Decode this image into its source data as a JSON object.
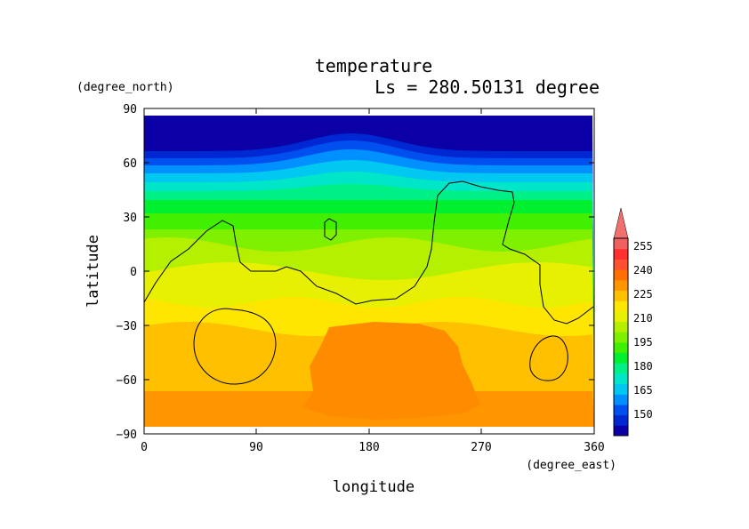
{
  "chart_data": {
    "type": "heatmap",
    "title": "temperature",
    "subtitle": "Ls = 280.50131 degree",
    "xlabel": "longitude",
    "ylabel": "latitude",
    "x_unit": "(degree_east)",
    "y_unit": "(degree_north)",
    "xlim": [
      0,
      360
    ],
    "ylim": [
      -90,
      90
    ],
    "x_ticks": [
      "0",
      "90",
      "180",
      "270",
      "360"
    ],
    "y_ticks": [
      "90",
      "60",
      "30",
      "0",
      "−30",
      "−60",
      "−90"
    ],
    "colorbar_ticks": [
      "255",
      "240",
      "225",
      "210",
      "195",
      "180",
      "165",
      "150"
    ],
    "colorbar_colors": [
      "#0a00a5",
      "#0028d2",
      "#0050f0",
      "#0090ff",
      "#00c8f0",
      "#00e6c8",
      "#00f088",
      "#00f030",
      "#40f000",
      "#7ef000",
      "#b4f000",
      "#e6f000",
      "#ffe600",
      "#ffc000",
      "#ff9600",
      "#ff7000",
      "#ff5030",
      "#ff3030",
      "#f06060"
    ],
    "land_contours": "present"
  }
}
